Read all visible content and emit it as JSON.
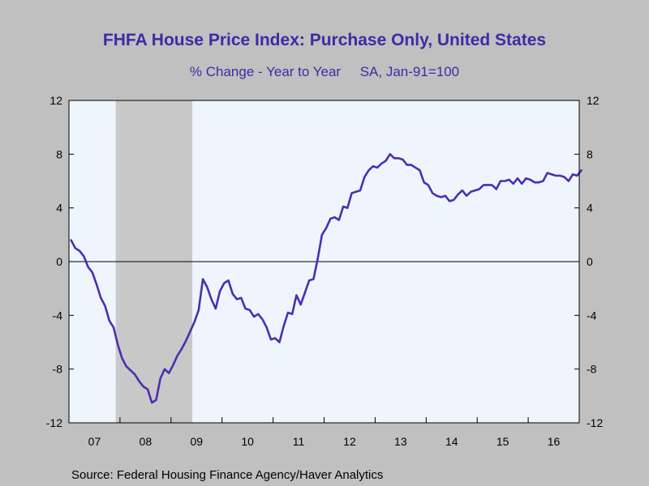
{
  "header": {
    "title": "FHFA House Price Index: Purchase Only, United States",
    "subtitle": "% Change - Year to Year     SA, Jan-91=100"
  },
  "footer": {
    "source": "Source:  Federal Housing Finance Agency/Haver Analytics"
  },
  "colors": {
    "series": "#4b2fb0",
    "title": "#3f2aa6",
    "plot_background": "#eef5fc",
    "recession": "#c8c8c8",
    "page_background": "#c0c0c0"
  },
  "chart_data": {
    "type": "line",
    "title": "FHFA House Price Index: Purchase Only, United States",
    "subtitle": "% Change - Year to Year     SA, Jan-91=100",
    "x_range": [
      2007.0,
      2017.0
    ],
    "ylim": [
      -12,
      12
    ],
    "y_ticks": [
      -12,
      -8,
      -4,
      0,
      4,
      8,
      12
    ],
    "y_tick_labels": [
      "-12",
      "-8",
      "-4",
      "0",
      "4",
      "8",
      "12"
    ],
    "x_tick_labels": [
      "07",
      "08",
      "09",
      "10",
      "11",
      "12",
      "13",
      "14",
      "15",
      "16"
    ],
    "zero_line": true,
    "recession_shading": [
      {
        "start": "2007-12",
        "end": "2009-06"
      }
    ],
    "series": [
      {
        "points": [
          [
            "2007-01",
            1.6
          ],
          [
            "2007-02",
            1.0
          ],
          [
            "2007-03",
            0.8
          ],
          [
            "2007-04",
            0.4
          ],
          [
            "2007-05",
            -0.4
          ],
          [
            "2007-06",
            -0.8
          ],
          [
            "2007-07",
            -1.7
          ],
          [
            "2007-08",
            -2.7
          ],
          [
            "2007-09",
            -3.3
          ],
          [
            "2007-10",
            -4.4
          ],
          [
            "2007-11",
            -4.9
          ],
          [
            "2007-12",
            -6.2
          ],
          [
            "2008-01",
            -7.2
          ],
          [
            "2008-02",
            -7.8
          ],
          [
            "2008-03",
            -8.1
          ],
          [
            "2008-04",
            -8.4
          ],
          [
            "2008-05",
            -8.9
          ],
          [
            "2008-06",
            -9.3
          ],
          [
            "2008-07",
            -9.5
          ],
          [
            "2008-08",
            -10.5
          ],
          [
            "2008-09",
            -10.3
          ],
          [
            "2008-10",
            -8.7
          ],
          [
            "2008-11",
            -8.0
          ],
          [
            "2008-12",
            -8.3
          ],
          [
            "2009-01",
            -7.7
          ],
          [
            "2009-02",
            -7.0
          ],
          [
            "2009-03",
            -6.5
          ],
          [
            "2009-04",
            -5.9
          ],
          [
            "2009-05",
            -5.2
          ],
          [
            "2009-06",
            -4.5
          ],
          [
            "2009-07",
            -3.6
          ],
          [
            "2009-08",
            -1.3
          ],
          [
            "2009-09",
            -1.9
          ],
          [
            "2009-10",
            -2.8
          ],
          [
            "2009-11",
            -3.5
          ],
          [
            "2009-12",
            -2.2
          ],
          [
            "2010-01",
            -1.6
          ],
          [
            "2010-02",
            -1.4
          ],
          [
            "2010-03",
            -2.4
          ],
          [
            "2010-04",
            -2.8
          ],
          [
            "2010-05",
            -2.7
          ],
          [
            "2010-06",
            -3.5
          ],
          [
            "2010-07",
            -3.6
          ],
          [
            "2010-08",
            -4.1
          ],
          [
            "2010-09",
            -3.9
          ],
          [
            "2010-10",
            -4.3
          ],
          [
            "2010-11",
            -4.9
          ],
          [
            "2010-12",
            -5.8
          ],
          [
            "2011-01",
            -5.7
          ],
          [
            "2011-02",
            -6.0
          ],
          [
            "2011-03",
            -4.8
          ],
          [
            "2011-04",
            -3.8
          ],
          [
            "2011-05",
            -3.9
          ],
          [
            "2011-06",
            -2.5
          ],
          [
            "2011-07",
            -3.2
          ],
          [
            "2011-08",
            -2.3
          ],
          [
            "2011-09",
            -1.4
          ],
          [
            "2011-10",
            -1.3
          ],
          [
            "2011-11",
            0.2
          ],
          [
            "2011-12",
            2.0
          ],
          [
            "2012-01",
            2.5
          ],
          [
            "2012-02",
            3.2
          ],
          [
            "2012-03",
            3.3
          ],
          [
            "2012-04",
            3.1
          ],
          [
            "2012-05",
            4.1
          ],
          [
            "2012-06",
            4.0
          ],
          [
            "2012-07",
            5.1
          ],
          [
            "2012-08",
            5.2
          ],
          [
            "2012-09",
            5.3
          ],
          [
            "2012-10",
            6.3
          ],
          [
            "2012-11",
            6.8
          ],
          [
            "2012-12",
            7.1
          ],
          [
            "2013-01",
            7.0
          ],
          [
            "2013-02",
            7.3
          ],
          [
            "2013-03",
            7.5
          ],
          [
            "2013-04",
            8.0
          ],
          [
            "2013-05",
            7.7
          ],
          [
            "2013-06",
            7.7
          ],
          [
            "2013-07",
            7.6
          ],
          [
            "2013-08",
            7.2
          ],
          [
            "2013-09",
            7.2
          ],
          [
            "2013-10",
            7.0
          ],
          [
            "2013-11",
            6.8
          ],
          [
            "2013-12",
            5.9
          ],
          [
            "2014-01",
            5.7
          ],
          [
            "2014-02",
            5.1
          ],
          [
            "2014-03",
            4.9
          ],
          [
            "2014-04",
            4.8
          ],
          [
            "2014-05",
            4.9
          ],
          [
            "2014-06",
            4.5
          ],
          [
            "2014-07",
            4.6
          ],
          [
            "2014-08",
            5.0
          ],
          [
            "2014-09",
            5.3
          ],
          [
            "2014-10",
            4.9
          ],
          [
            "2014-11",
            5.2
          ],
          [
            "2014-12",
            5.3
          ],
          [
            "2015-01",
            5.4
          ],
          [
            "2015-02",
            5.7
          ],
          [
            "2015-03",
            5.7
          ],
          [
            "2015-04",
            5.7
          ],
          [
            "2015-05",
            5.4
          ],
          [
            "2015-06",
            6.0
          ],
          [
            "2015-07",
            6.0
          ],
          [
            "2015-08",
            6.1
          ],
          [
            "2015-09",
            5.8
          ],
          [
            "2015-10",
            6.2
          ],
          [
            "2015-11",
            5.8
          ],
          [
            "2015-12",
            6.2
          ],
          [
            "2016-01",
            6.1
          ],
          [
            "2016-02",
            5.9
          ],
          [
            "2016-03",
            5.9
          ],
          [
            "2016-04",
            6.0
          ],
          [
            "2016-05",
            6.6
          ],
          [
            "2016-06",
            6.5
          ],
          [
            "2016-07",
            6.4
          ],
          [
            "2016-08",
            6.4
          ],
          [
            "2016-09",
            6.3
          ],
          [
            "2016-10",
            6.0
          ],
          [
            "2016-11",
            6.5
          ],
          [
            "2016-12",
            6.4
          ],
          [
            "2017-01",
            6.8
          ]
        ]
      }
    ]
  }
}
